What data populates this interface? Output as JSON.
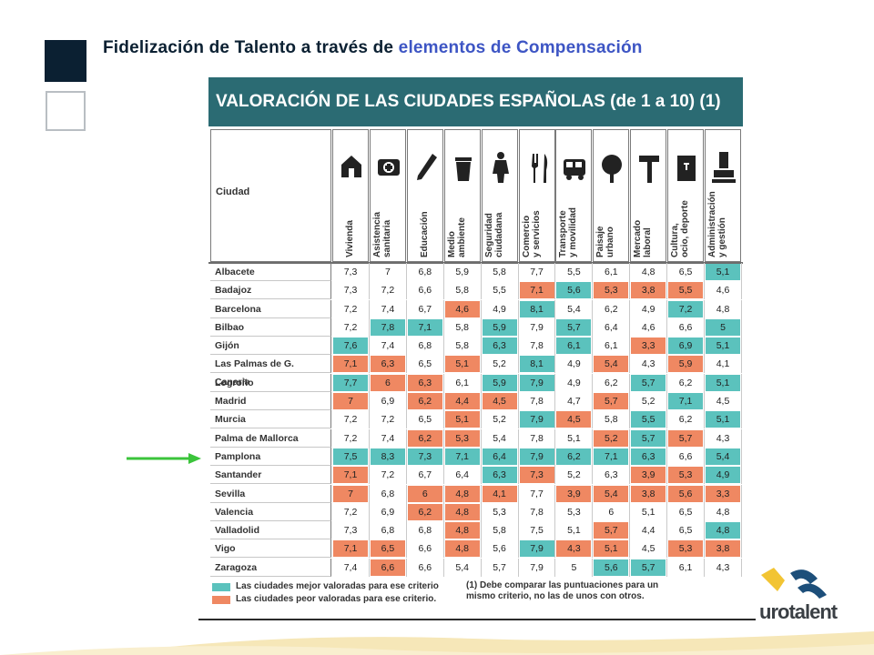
{
  "slide": {
    "title_main": "Fidelización de Talento a través de ",
    "title_highlight": "elementos de Compensación"
  },
  "colors": {
    "accent": "#3d55c4",
    "header_bg": "#2b6b73",
    "good": "#5bc2bd",
    "bad": "#ef8862",
    "arrow": "#3bc43b"
  },
  "table": {
    "title": "VALORACIÓN DE LAS CIUDADES ESPAÑOLAS (de 1 a 10) (1)",
    "city_header": "Ciudad",
    "columns": [
      {
        "label": "Vivienda",
        "icon": "house-icon"
      },
      {
        "label": "Asistencia\nsanitaria",
        "icon": "medical-kit-icon"
      },
      {
        "label": "Educación",
        "icon": "pencil-icon"
      },
      {
        "label": "Medio\nambiente",
        "icon": "trash-bin-icon"
      },
      {
        "label": "Seguridad\nciudadana",
        "icon": "police-officer-icon"
      },
      {
        "label": "Comercio\ny servicios",
        "icon": "fork-knife-icon"
      },
      {
        "label": "Transporte\ny movilidad",
        "icon": "bus-icon"
      },
      {
        "label": "Paisaje\nurbano",
        "icon": "tree-icon"
      },
      {
        "label": "Mercado\nlaboral",
        "icon": "hammer-icon"
      },
      {
        "label": "Cultura,\nocio, deporte",
        "icon": "book-icon"
      },
      {
        "label": "Administración\ny gestión",
        "icon": "stamp-icon"
      }
    ],
    "rows": [
      {
        "city": "Albacete",
        "values": [
          "7,3",
          "7",
          "6,8",
          "5,9",
          "5,8",
          "7,7",
          "5,5",
          "6,1",
          "4,8",
          "6,5",
          "5,1"
        ],
        "marks": [
          "",
          "",
          "",
          "",
          "",
          "",
          "",
          "",
          "",
          "",
          "g"
        ]
      },
      {
        "city": "Badajoz",
        "values": [
          "7,3",
          "7,2",
          "6,6",
          "5,8",
          "5,5",
          "7,1",
          "5,6",
          "5,3",
          "3,8",
          "5,5",
          "4,6"
        ],
        "marks": [
          "",
          "",
          "",
          "",
          "",
          "b",
          "g",
          "b",
          "b",
          "b",
          ""
        ]
      },
      {
        "city": "Barcelona",
        "values": [
          "7,2",
          "7,4",
          "6,7",
          "4,6",
          "4,9",
          "8,1",
          "5,4",
          "6,2",
          "4,9",
          "7,2",
          "4,8"
        ],
        "marks": [
          "",
          "",
          "",
          "b",
          "",
          "g",
          "",
          "",
          "",
          "g",
          ""
        ]
      },
      {
        "city": "Bilbao",
        "values": [
          "7,2",
          "7,8",
          "7,1",
          "5,8",
          "5,9",
          "7,9",
          "5,7",
          "6,4",
          "4,6",
          "6,6",
          "5"
        ],
        "marks": [
          "",
          "g",
          "g",
          "",
          "g",
          "",
          "g",
          "",
          "",
          "",
          "g"
        ]
      },
      {
        "city": "Gijón",
        "values": [
          "7,6",
          "7,4",
          "6,8",
          "5,8",
          "6,3",
          "7,8",
          "6,1",
          "6,1",
          "3,3",
          "6,9",
          "5,1"
        ],
        "marks": [
          "g",
          "",
          "",
          "",
          "g",
          "",
          "g",
          "",
          "b",
          "g",
          "g"
        ]
      },
      {
        "city": "Las Palmas de G. Canaria",
        "values": [
          "7,1",
          "6,3",
          "6,5",
          "5,1",
          "5,2",
          "8,1",
          "4,9",
          "5,4",
          "4,3",
          "5,9",
          "4,1"
        ],
        "marks": [
          "b",
          "b",
          "",
          "b",
          "",
          "g",
          "",
          "b",
          "",
          "b",
          ""
        ]
      },
      {
        "city": "Logroño",
        "values": [
          "7,7",
          "6",
          "6,3",
          "6,1",
          "5,9",
          "7,9",
          "4,9",
          "6,2",
          "5,7",
          "6,2",
          "5,1"
        ],
        "marks": [
          "g",
          "b",
          "b",
          "",
          "g",
          "g",
          "",
          "",
          "g",
          "",
          "g"
        ]
      },
      {
        "city": "Madrid",
        "values": [
          "7",
          "6,9",
          "6,2",
          "4,4",
          "4,5",
          "7,8",
          "4,7",
          "5,7",
          "5,2",
          "7,1",
          "4,5"
        ],
        "marks": [
          "b",
          "",
          "b",
          "b",
          "b",
          "",
          "",
          "b",
          "",
          "g",
          ""
        ]
      },
      {
        "city": "Murcia",
        "values": [
          "7,2",
          "7,2",
          "6,5",
          "5,1",
          "5,2",
          "7,9",
          "4,5",
          "5,8",
          "5,5",
          "6,2",
          "5,1"
        ],
        "marks": [
          "",
          "",
          "",
          "b",
          "",
          "g",
          "b",
          "",
          "g",
          "",
          "g"
        ]
      },
      {
        "city": "Palma de Mallorca",
        "values": [
          "7,2",
          "7,4",
          "6,2",
          "5,3",
          "5,4",
          "7,8",
          "5,1",
          "5,2",
          "5,7",
          "5,7",
          "4,3"
        ],
        "marks": [
          "",
          "",
          "b",
          "b",
          "",
          "",
          "",
          "b",
          "g",
          "b",
          ""
        ]
      },
      {
        "city": "Pamplona",
        "values": [
          "7,5",
          "8,3",
          "7,3",
          "7,1",
          "6,4",
          "7,9",
          "6,2",
          "7,1",
          "6,3",
          "6,6",
          "5,4"
        ],
        "marks": [
          "g",
          "g",
          "g",
          "g",
          "g",
          "g",
          "g",
          "g",
          "g",
          "",
          "g"
        ]
      },
      {
        "city": "Santander",
        "values": [
          "7,1",
          "7,2",
          "6,7",
          "6,4",
          "6,3",
          "7,3",
          "5,2",
          "6,3",
          "3,9",
          "5,3",
          "4,9"
        ],
        "marks": [
          "b",
          "",
          "",
          "",
          "g",
          "b",
          "",
          "",
          "b",
          "b",
          "g"
        ]
      },
      {
        "city": "Sevilla",
        "values": [
          "7",
          "6,8",
          "6",
          "4,8",
          "4,1",
          "7,7",
          "3,9",
          "5,4",
          "3,8",
          "5,6",
          "3,3"
        ],
        "marks": [
          "b",
          "",
          "b",
          "b",
          "b",
          "",
          "b",
          "b",
          "b",
          "b",
          "b"
        ]
      },
      {
        "city": "Valencia",
        "values": [
          "7,2",
          "6,9",
          "6,2",
          "4,8",
          "5,3",
          "7,8",
          "5,3",
          "6",
          "5,1",
          "6,5",
          "4,8"
        ],
        "marks": [
          "",
          "",
          "b",
          "b",
          "",
          "",
          "",
          "",
          "",
          "",
          ""
        ]
      },
      {
        "city": "Valladolid",
        "values": [
          "7,3",
          "6,8",
          "6,8",
          "4,8",
          "5,8",
          "7,5",
          "5,1",
          "5,7",
          "4,4",
          "6,5",
          "4,8"
        ],
        "marks": [
          "",
          "",
          "",
          "b",
          "",
          "",
          "",
          "b",
          "",
          "",
          "g"
        ]
      },
      {
        "city": "Vigo",
        "values": [
          "7,1",
          "6,5",
          "6,6",
          "4,8",
          "5,6",
          "7,9",
          "4,3",
          "5,1",
          "4,5",
          "5,3",
          "3,8"
        ],
        "marks": [
          "b",
          "b",
          "",
          "b",
          "",
          "g",
          "b",
          "b",
          "",
          "b",
          "b"
        ]
      },
      {
        "city": "Zaragoza",
        "values": [
          "7,4",
          "6,6",
          "6,6",
          "5,4",
          "5,7",
          "7,9",
          "5",
          "5,6",
          "5,7",
          "6,1",
          "4,3"
        ],
        "marks": [
          "",
          "b",
          "",
          "",
          "",
          "",
          "",
          "g",
          "g",
          "",
          ""
        ]
      }
    ],
    "legend": {
      "good": "Las ciudades mejor valoradas para ese criterio",
      "bad": "Las ciudades peor valoradas para ese criterio.",
      "note": "(1) Debe comparar las puntuaciones para un mismo criterio, no las de unos con otros."
    }
  },
  "logo": {
    "text": "urotalent"
  }
}
